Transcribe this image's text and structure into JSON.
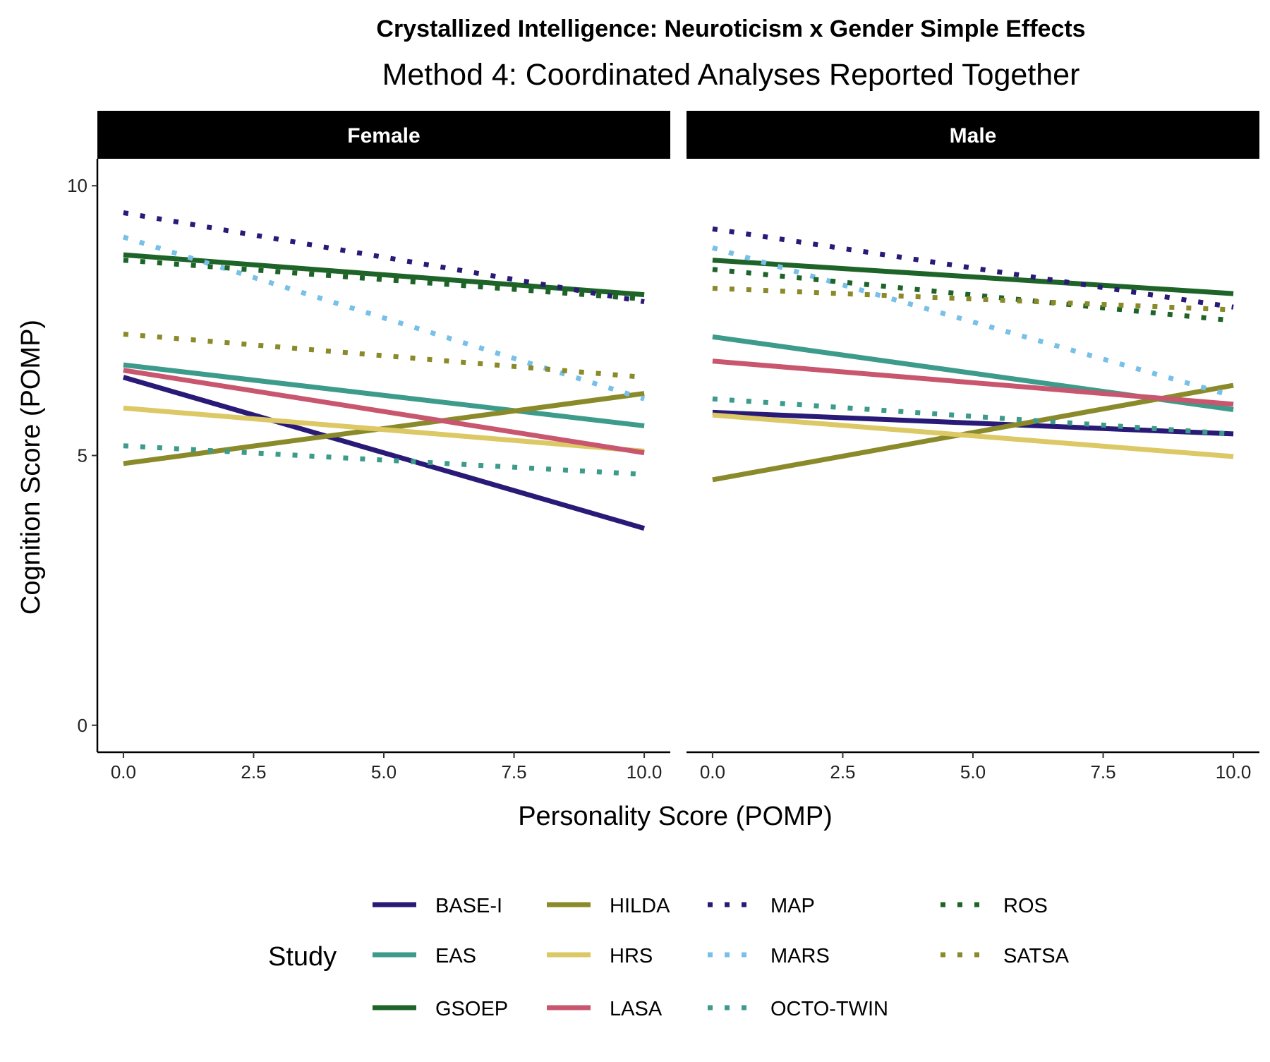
{
  "chart_data": {
    "type": "line",
    "title": "Crystallized Intelligence: Neuroticism x Gender Simple Effects",
    "subtitle": "Method 4: Coordinated Analyses Reported Together",
    "xlabel": "Personality Score (POMP)",
    "ylabel": "Cognition Score (POMP)",
    "xlim": [
      -0.5,
      10.5
    ],
    "ylim": [
      -0.5,
      10.5
    ],
    "x_ticks": [
      0,
      2.5,
      5,
      7.5,
      10
    ],
    "x_tick_labels": [
      "0.0",
      "2.5",
      "5.0",
      "7.5",
      "10.0"
    ],
    "y_ticks": [
      0,
      5,
      10
    ],
    "y_tick_labels": [
      "0",
      "5",
      "10"
    ],
    "grid": false,
    "legend": {
      "title": "Study",
      "position": "bottom"
    },
    "series": [
      {
        "name": "BASE-I",
        "color": "#2a1a78",
        "style": "solid"
      },
      {
        "name": "EAS",
        "color": "#3c9b8a",
        "style": "solid"
      },
      {
        "name": "GSOEP",
        "color": "#1e6428",
        "style": "solid"
      },
      {
        "name": "HILDA",
        "color": "#8a8a2a",
        "style": "solid"
      },
      {
        "name": "HRS",
        "color": "#dcc864",
        "style": "solid"
      },
      {
        "name": "LASA",
        "color": "#c8566e",
        "style": "solid"
      },
      {
        "name": "MAP",
        "color": "#2a1a78",
        "style": "dotted"
      },
      {
        "name": "MARS",
        "color": "#78c0e8",
        "style": "dotted"
      },
      {
        "name": "OCTO-TWIN",
        "color": "#3c9b8a",
        "style": "dotted"
      },
      {
        "name": "ROS",
        "color": "#1e6428",
        "style": "dotted"
      },
      {
        "name": "SATSA",
        "color": "#8a8a2a",
        "style": "dotted"
      }
    ],
    "panels": [
      {
        "label": "Female",
        "lines": [
          {
            "series": "BASE-I",
            "x": [
              0,
              10
            ],
            "y": [
              6.45,
              3.65
            ]
          },
          {
            "series": "EAS",
            "x": [
              0,
              10
            ],
            "y": [
              6.68,
              5.55
            ]
          },
          {
            "series": "GSOEP",
            "x": [
              0,
              10
            ],
            "y": [
              8.72,
              7.98
            ]
          },
          {
            "series": "HILDA",
            "x": [
              0,
              10
            ],
            "y": [
              4.85,
              6.15
            ]
          },
          {
            "series": "HRS",
            "x": [
              0,
              10
            ],
            "y": [
              5.88,
              5.08
            ]
          },
          {
            "series": "LASA",
            "x": [
              0,
              10
            ],
            "y": [
              6.58,
              5.05
            ]
          },
          {
            "series": "MAP",
            "x": [
              0,
              10
            ],
            "y": [
              9.5,
              7.85
            ]
          },
          {
            "series": "MARS",
            "x": [
              0,
              10
            ],
            "y": [
              9.05,
              6.05
            ]
          },
          {
            "series": "OCTO-TWIN",
            "x": [
              0,
              10
            ],
            "y": [
              5.18,
              4.65
            ]
          },
          {
            "series": "ROS",
            "x": [
              0,
              10
            ],
            "y": [
              8.62,
              7.9
            ]
          },
          {
            "series": "SATSA",
            "x": [
              0,
              10
            ],
            "y": [
              7.25,
              6.45
            ]
          }
        ]
      },
      {
        "label": "Male",
        "lines": [
          {
            "series": "BASE-I",
            "x": [
              0,
              10
            ],
            "y": [
              5.8,
              5.4
            ]
          },
          {
            "series": "EAS",
            "x": [
              0,
              10
            ],
            "y": [
              7.2,
              5.85
            ]
          },
          {
            "series": "GSOEP",
            "x": [
              0,
              10
            ],
            "y": [
              8.62,
              8.0
            ]
          },
          {
            "series": "HILDA",
            "x": [
              0,
              10
            ],
            "y": [
              4.55,
              6.3
            ]
          },
          {
            "series": "HRS",
            "x": [
              0,
              10
            ],
            "y": [
              5.75,
              4.98
            ]
          },
          {
            "series": "LASA",
            "x": [
              0,
              10
            ],
            "y": [
              6.75,
              5.95
            ]
          },
          {
            "series": "MAP",
            "x": [
              0,
              10
            ],
            "y": [
              9.2,
              7.75
            ]
          },
          {
            "series": "MARS",
            "x": [
              0,
              10
            ],
            "y": [
              8.85,
              6.1
            ]
          },
          {
            "series": "OCTO-TWIN",
            "x": [
              0,
              10
            ],
            "y": [
              6.05,
              5.4
            ]
          },
          {
            "series": "ROS",
            "x": [
              0,
              10
            ],
            "y": [
              8.45,
              7.5
            ]
          },
          {
            "series": "SATSA",
            "x": [
              0,
              10
            ],
            "y": [
              8.1,
              7.7
            ]
          }
        ]
      }
    ]
  }
}
